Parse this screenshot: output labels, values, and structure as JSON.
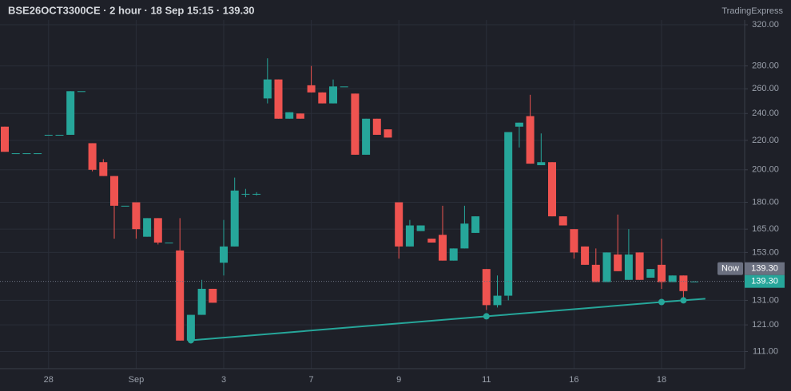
{
  "chart_data": {
    "type": "candlestick",
    "title": "BSE26OCT3300CE · 2 hour · 18 Sep 15:15 · 139.30",
    "watermark": "TradingExpress",
    "categories": [
      null,
      null,
      null,
      null,
      "28",
      null,
      null,
      null,
      null,
      null,
      null,
      null,
      "Sep",
      null,
      null,
      null,
      null,
      null,
      null,
      null,
      "3",
      null,
      null,
      null,
      null,
      null,
      null,
      null,
      "7",
      null,
      null,
      null,
      null,
      null,
      null,
      null,
      "9",
      null,
      null,
      null,
      null,
      null,
      null,
      null,
      "11",
      null,
      null,
      null,
      null,
      null,
      null,
      null,
      "16",
      null,
      null,
      null,
      null,
      null,
      null,
      null,
      "18",
      null,
      null,
      null
    ],
    "open": [
      230,
      211,
      211,
      211,
      224,
      224,
      224,
      258,
      218,
      205,
      196,
      178,
      180,
      161,
      171,
      158,
      154,
      115,
      125,
      136,
      148,
      156,
      185,
      185,
      252,
      268,
      236,
      240,
      263,
      257,
      248,
      262,
      256,
      210,
      236,
      228,
      180,
      156,
      164,
      160,
      162,
      149,
      155,
      163,
      145,
      129,
      133,
      230,
      238,
      203,
      205,
      172,
      165,
      156,
      147,
      139,
      152,
      140,
      153,
      141,
      147,
      139,
      142,
      139
    ],
    "high": [
      230,
      211,
      211,
      211,
      224,
      224,
      258,
      258,
      218,
      207,
      196,
      178,
      180,
      171,
      171,
      158,
      171,
      125,
      140,
      136,
      170,
      195,
      188,
      186,
      287,
      268,
      241,
      240,
      280,
      257,
      268,
      262,
      256,
      236,
      236,
      228,
      180,
      170,
      167,
      160,
      178,
      155,
      178,
      172,
      145,
      142,
      226,
      233,
      255,
      225,
      205,
      172,
      165,
      156,
      155,
      153,
      173,
      165,
      153,
      145,
      160,
      142,
      142,
      139.3
    ],
    "low": [
      212,
      211,
      211,
      211,
      224,
      224,
      224,
      258,
      199,
      196,
      160,
      178,
      160,
      161,
      157,
      158,
      115,
      114,
      125,
      130,
      142,
      156,
      183,
      184,
      248,
      236,
      236,
      236,
      257,
      248,
      248,
      262,
      210,
      210,
      224,
      222,
      150,
      156,
      164,
      158,
      149,
      149,
      155,
      163,
      127,
      128,
      131,
      215,
      204,
      203,
      172,
      167,
      150,
      147,
      139,
      139,
      144,
      140,
      140,
      141,
      136,
      139,
      132,
      139
    ],
    "close": [
      212,
      211,
      211,
      211,
      224,
      224,
      258,
      258,
      200,
      196,
      178,
      178,
      165,
      171,
      158,
      158,
      115,
      125,
      136,
      130,
      156,
      187,
      185,
      185,
      268,
      236,
      241,
      236,
      257,
      248,
      262,
      262,
      210,
      236,
      224,
      222,
      156,
      167,
      167,
      158,
      149,
      155,
      168,
      172,
      129,
      133,
      226,
      233,
      204,
      205,
      172,
      167,
      153,
      147,
      139,
      153,
      144,
      152,
      140,
      145,
      139,
      142,
      135,
      139.3
    ],
    "up_color": "#26a69a",
    "down_color": "#ef5350",
    "log_scale": true,
    "grid": true,
    "ylim": [
      105,
      325
    ],
    "yticks": [
      {
        "value": 111,
        "label": "111.00"
      },
      {
        "value": 121,
        "label": "121.00"
      },
      {
        "value": 131,
        "label": "131.00"
      },
      {
        "value": 153,
        "label": "153.00"
      },
      {
        "value": 165,
        "label": "165.00"
      },
      {
        "value": 180,
        "label": "180.00"
      },
      {
        "value": 200,
        "label": "200.00"
      },
      {
        "value": 220,
        "label": "220.00"
      },
      {
        "value": 240,
        "label": "240.00"
      },
      {
        "value": 260,
        "label": "260.00"
      },
      {
        "value": 280,
        "label": "280.00"
      },
      {
        "value": 320,
        "label": "320.00"
      }
    ],
    "last_price": {
      "tag": "Now",
      "value": 139.3,
      "value_label": "139.30"
    },
    "trendline": {
      "x": [
        17,
        44,
        60,
        62,
        64
      ],
      "values": [
        115.1,
        124.4,
        130.3,
        131.0,
        131.7
      ],
      "markers": [
        true,
        true,
        true,
        true,
        false
      ],
      "color": "#26a69a"
    }
  }
}
